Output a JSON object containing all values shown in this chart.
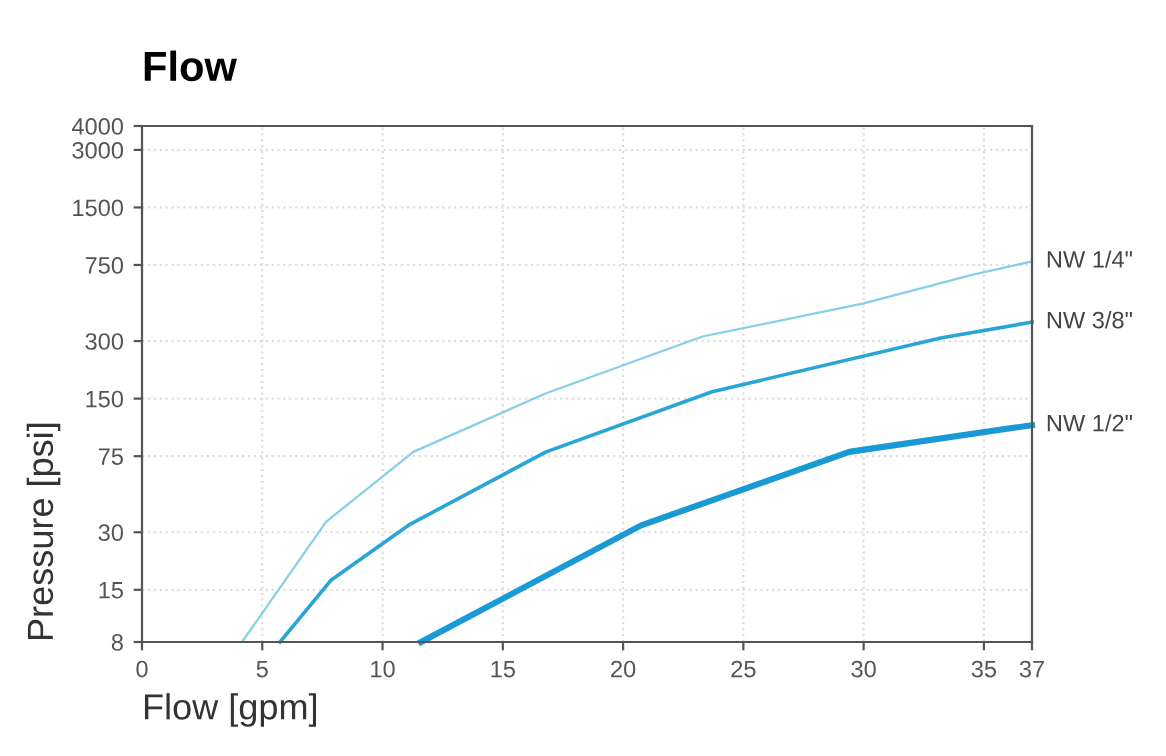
{
  "chart_data": {
    "type": "line",
    "title": "Flow",
    "xlabel": "Flow [gpm]",
    "ylabel": "Pressure [psi]",
    "log": "y",
    "grid": true,
    "legend": false,
    "marker": "none",
    "line_style": "solid",
    "xlim": [
      0,
      37
    ],
    "xticks": [
      0,
      5,
      10,
      15,
      20,
      25,
      30,
      35,
      37
    ],
    "ylim": [
      8,
      4000
    ],
    "yticks": [
      8,
      15,
      30,
      75,
      150,
      300,
      750,
      1500,
      3000,
      4000
    ],
    "series": [
      {
        "name": "NW 1/4\"",
        "color": "#86cfea",
        "x": [
          4.16,
          7.65,
          11.28,
          16.8,
          23.3,
          30,
          34.55,
          37
        ],
        "values": [
          8,
          34,
          79,
          160,
          317,
          472,
          668,
          783
        ]
      },
      {
        "name": "NW 3/8\"",
        "color": "#2aa6d6",
        "x": [
          5.74,
          7.87,
          11.14,
          16.8,
          23.7,
          33.2,
          37
        ],
        "values": [
          8,
          16.9,
          33,
          79,
          163,
          311,
          377
        ]
      },
      {
        "name": "NW 1/2\"",
        "color": "#1a9ad4",
        "x": [
          11.6,
          20.75,
          29.4,
          37
        ],
        "values": [
          8,
          32.6,
          79,
          109
        ]
      }
    ]
  }
}
